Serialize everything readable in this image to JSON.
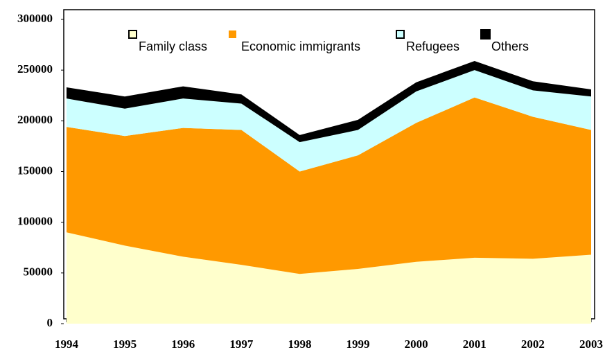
{
  "chart_data": {
    "type": "stacked_area",
    "x": [
      1994,
      1995,
      1996,
      1997,
      1998,
      1999,
      2000,
      2001,
      2002,
      2003
    ],
    "xlim": [
      1994,
      2003
    ],
    "xticks": [
      1994,
      1995,
      1996,
      1997,
      1998,
      1999,
      2000,
      2001,
      2002,
      2003
    ],
    "ylim": [
      0,
      300000
    ],
    "yticks": [
      0,
      50000,
      100000,
      150000,
      200000,
      250000,
      300000
    ],
    "legend": "top",
    "series": [
      {
        "name": "Family class",
        "color": "#ffffcc",
        "values": [
          90000,
          77000,
          66000,
          58000,
          49000,
          54000,
          61000,
          65000,
          64000,
          68000
        ]
      },
      {
        "name": "Economic immigrants",
        "color": "#ff9900",
        "values": [
          104000,
          108000,
          127000,
          133000,
          101000,
          112000,
          137000,
          158000,
          140000,
          123000
        ]
      },
      {
        "name": "Refugees",
        "color": "#ccffff",
        "values": [
          28000,
          27000,
          29000,
          26000,
          29000,
          25000,
          31000,
          27000,
          26000,
          33000
        ]
      },
      {
        "name": "Others",
        "color": "#000000",
        "values": [
          11000,
          12000,
          12000,
          9000,
          7000,
          10000,
          9000,
          9000,
          9000,
          7000
        ]
      }
    ]
  }
}
